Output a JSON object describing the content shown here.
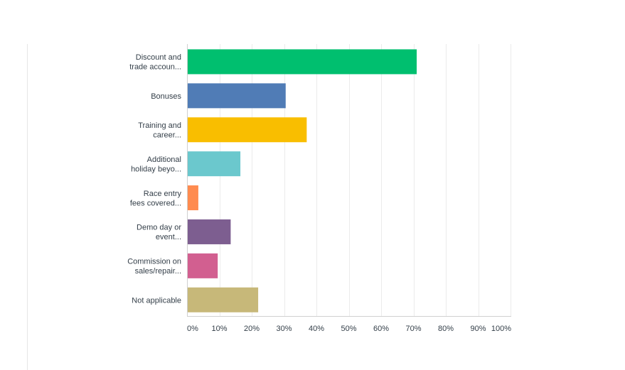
{
  "chart_data": {
    "type": "bar",
    "orientation": "horizontal",
    "categories": [
      [
        "Discount and",
        "trade accoun..."
      ],
      [
        "Bonuses"
      ],
      [
        "Training and",
        "career..."
      ],
      [
        "Additional",
        "holiday beyo..."
      ],
      [
        "Race entry",
        "fees covered..."
      ],
      [
        "Demo day or",
        "event..."
      ],
      [
        "Commission on",
        "sales/repair..."
      ],
      [
        "Not applicable"
      ]
    ],
    "values": [
      71,
      30.5,
      37,
      16.5,
      3.5,
      13.5,
      9.5,
      22
    ],
    "colors": [
      "#00bf6f",
      "#507cb6",
      "#f9be00",
      "#6bc8cd",
      "#ff8b4f",
      "#7d5e90",
      "#d25f90",
      "#c7b879"
    ],
    "xlim": [
      0,
      100
    ],
    "xticks": [
      "0%",
      "10%",
      "20%",
      "30%",
      "40%",
      "50%",
      "60%",
      "70%",
      "80%",
      "90%",
      "100%"
    ],
    "grid": true,
    "title": "",
    "xlabel": "",
    "ylabel": ""
  }
}
